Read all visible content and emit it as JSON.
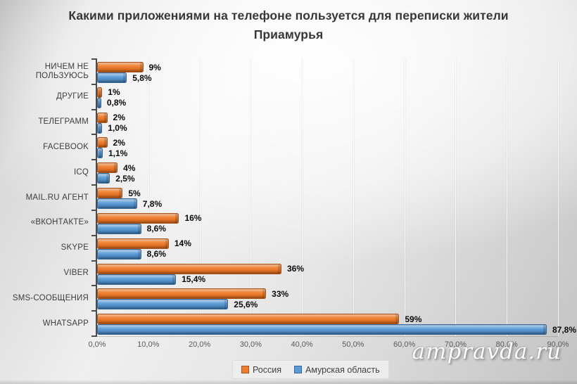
{
  "watermark": "ampravda.ru",
  "chart_data": {
    "type": "bar",
    "orientation": "horizontal",
    "title": "Какими приложениями на телефоне пользуется для переписки жители Приамурья",
    "categories": [
      "НИЧЕМ НЕ ПОЛЬЗУЮСЬ",
      "ДРУГИЕ",
      "ТЕЛЕГРАММ",
      "FACEBOOK",
      "ICQ",
      "MAIL.RU АГЕНТ",
      "«ВКОНТАКТЕ»",
      "SKYPE",
      "VIBER",
      "SMS-СООБЩЕНИЯ",
      "WHATSAPP"
    ],
    "series": [
      {
        "name": "Россия",
        "color": "#ED7D31",
        "values": [
          9,
          1,
          2,
          2,
          4,
          5,
          16,
          14,
          36,
          33,
          59
        ],
        "labels": [
          "9%",
          "1%",
          "2%",
          "2%",
          "4%",
          "5%",
          "16%",
          "14%",
          "36%",
          "33%",
          "59%"
        ]
      },
      {
        "name": "Амурская область",
        "color": "#5B9BD5",
        "values": [
          5.8,
          0.8,
          1.0,
          1.1,
          2.5,
          7.8,
          8.6,
          8.6,
          15.4,
          25.6,
          87.8
        ],
        "labels": [
          "5,8%",
          "0,8%",
          "1,0%",
          "1,1%",
          "2,5%",
          "7,8%",
          "8,6%",
          "8,6%",
          "15,4%",
          "25,6%",
          "87,8%"
        ]
      }
    ],
    "xlim": [
      0,
      90
    ],
    "x_tick_labels": [
      "0,0%",
      "10,0%",
      "20,0%",
      "30,0%",
      "40,0%",
      "50,0%",
      "60,0%",
      "70,0%",
      "80,0%",
      "90,0%"
    ],
    "grid": true,
    "legend_position": "bottom",
    "value_labels_visible": true
  }
}
